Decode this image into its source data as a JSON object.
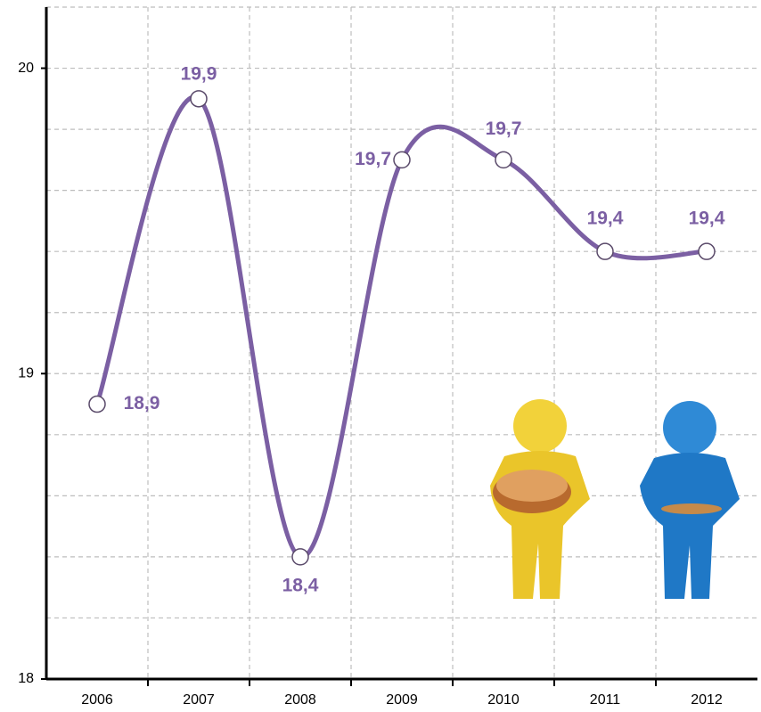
{
  "chart_data": {
    "type": "line",
    "categories": [
      "2006",
      "2007",
      "2008",
      "2009",
      "2010",
      "2011",
      "2012"
    ],
    "series": [
      {
        "color": "#7b5fa3",
        "values": [
          18.9,
          19.9,
          18.4,
          19.7,
          19.7,
          19.4,
          19.4
        ],
        "value_labels": [
          "18,9",
          "19,9",
          "18,4",
          "19,7",
          "19,7",
          "19,4",
          "19,4"
        ]
      }
    ],
    "ylim": [
      18,
      20.2
    ],
    "yticks": [
      18,
      19,
      20
    ],
    "grid_yticks": [
      18.2,
      18.4,
      18.6,
      18.8,
      19.2,
      19.4,
      19.6,
      19.8,
      20.2
    ],
    "grid": true,
    "smooth": true
  }
}
